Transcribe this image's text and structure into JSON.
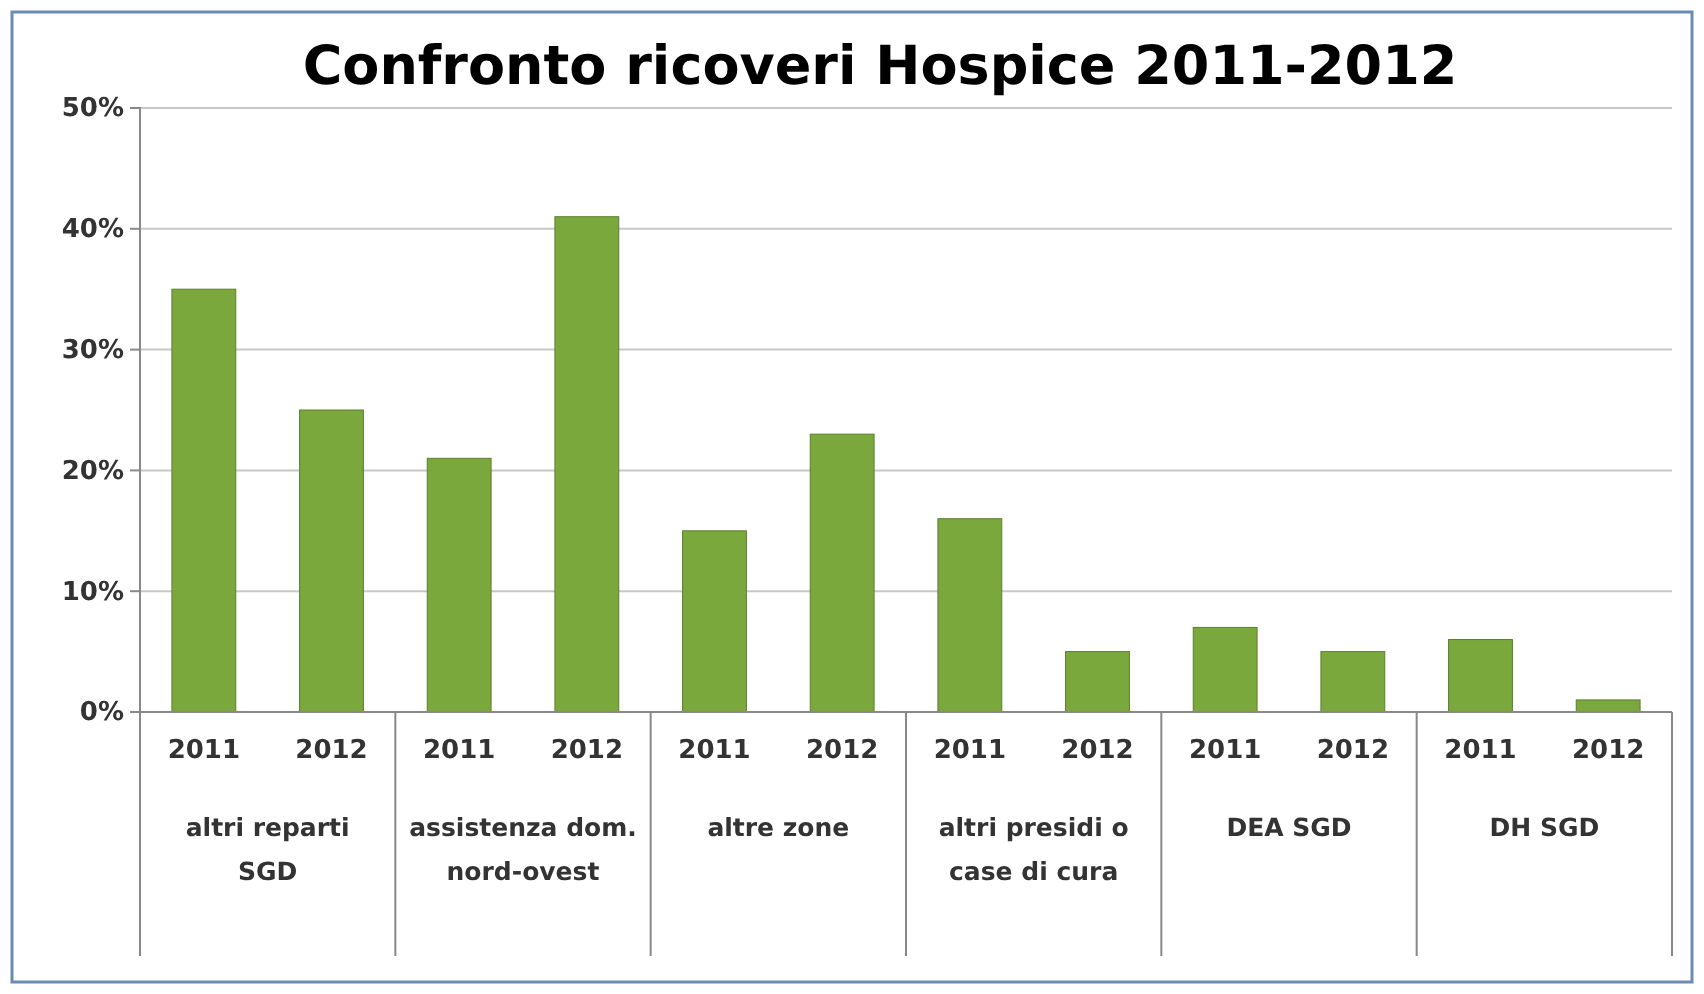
{
  "chart_data": {
    "type": "bar",
    "title": "Confronto ricoveri Hospice 2011-2012",
    "categories": [
      "2011",
      "2012",
      "2011",
      "2012",
      "2011",
      "2012",
      "2011",
      "2012",
      "2011",
      "2012",
      "2011",
      "2012"
    ],
    "values": [
      35,
      25,
      21,
      41,
      15,
      23,
      16,
      5,
      7,
      5,
      6,
      1
    ],
    "color": "#7aa83c",
    "ylim": [
      0,
      50
    ],
    "yticks": [
      {
        "value": 0,
        "label": "0%"
      },
      {
        "value": 10,
        "label": "10%"
      },
      {
        "value": 20,
        "label": "20%"
      },
      {
        "value": 30,
        "label": "30%"
      },
      {
        "value": 40,
        "label": "40%"
      },
      {
        "value": 50,
        "label": "50%"
      }
    ],
    "grid": "y",
    "annotations": [
      "altri reparti SGD",
      "assistenza dom. nord-ovest",
      "altre zone",
      "altri presidi o case di cura",
      "DEA SGD",
      "DH SGD"
    ]
  }
}
